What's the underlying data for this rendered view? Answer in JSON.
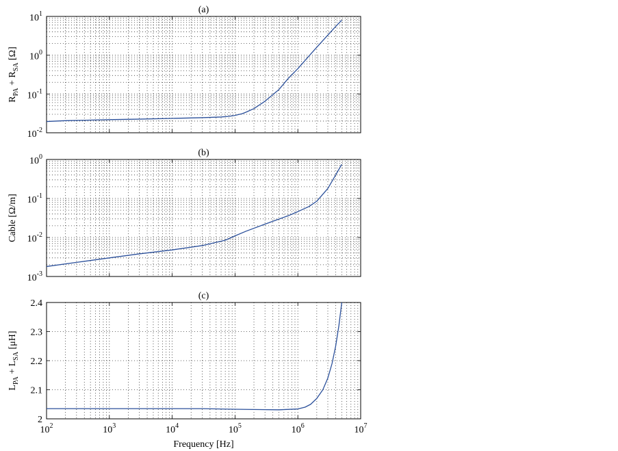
{
  "chart_data": [
    {
      "type": "line",
      "title": "(a)",
      "ylabel_parts": [
        {
          "t": "R",
          "sub": false
        },
        {
          "t": "PA",
          "sub": true
        },
        {
          "t": " + R",
          "sub": false
        },
        {
          "t": "SA",
          "sub": true
        },
        {
          "t": "   [Ω]",
          "sub": false
        }
      ],
      "xlabel": "",
      "xscale": "log",
      "yscale": "log",
      "xlim": [
        100,
        10000000
      ],
      "ylim": [
        0.01,
        10
      ],
      "grid": true,
      "y_ticks": [
        {
          "value": 0.01,
          "base": "10",
          "exp": "-2"
        },
        {
          "value": 0.1,
          "base": "10",
          "exp": "-1"
        },
        {
          "value": 1,
          "base": "10",
          "exp": "0"
        },
        {
          "value": 10,
          "base": "10",
          "exp": "1"
        }
      ],
      "series": [
        {
          "color": "#2a4f9a",
          "x": [
            100,
            200,
            500,
            1000,
            3000,
            10000,
            30000,
            60000,
            80000,
            100000,
            130000,
            150000,
            200000,
            300000,
            500000,
            700000,
            1000000,
            1500000,
            2000000,
            3000000,
            4000000,
            5000000
          ],
          "y": [
            0.0195,
            0.0205,
            0.0212,
            0.0218,
            0.0225,
            0.0235,
            0.0245,
            0.0255,
            0.0265,
            0.028,
            0.031,
            0.034,
            0.042,
            0.065,
            0.13,
            0.25,
            0.45,
            0.95,
            1.6,
            3.3,
            5.5,
            8.0
          ]
        }
      ]
    },
    {
      "type": "line",
      "title": "(b)",
      "ylabel_parts": [
        {
          "t": "Cable [Ω/m]",
          "sub": false
        }
      ],
      "xlabel": "",
      "xscale": "log",
      "yscale": "log",
      "xlim": [
        100,
        10000000
      ],
      "ylim": [
        0.001,
        1
      ],
      "grid": true,
      "y_ticks": [
        {
          "value": 0.001,
          "base": "10",
          "exp": "-3"
        },
        {
          "value": 0.01,
          "base": "10",
          "exp": "-2"
        },
        {
          "value": 0.1,
          "base": "10",
          "exp": "-1"
        },
        {
          "value": 1,
          "base": "10",
          "exp": "0"
        }
      ],
      "series": [
        {
          "color": "#2a4f9a",
          "x": [
            100,
            300,
            1000,
            3000,
            10000,
            30000,
            70000,
            100000,
            150000,
            300000,
            700000,
            1000000,
            1500000,
            2000000,
            3000000,
            4000000,
            5000000
          ],
          "y": [
            0.0018,
            0.0023,
            0.003,
            0.0038,
            0.0048,
            0.0062,
            0.0085,
            0.011,
            0.0145,
            0.022,
            0.036,
            0.046,
            0.062,
            0.085,
            0.18,
            0.4,
            0.75
          ]
        }
      ]
    },
    {
      "type": "line",
      "title": "(c)",
      "ylabel_parts": [
        {
          "t": "L",
          "sub": false
        },
        {
          "t": "PA",
          "sub": true
        },
        {
          "t": " + L",
          "sub": false
        },
        {
          "t": "SA",
          "sub": true
        },
        {
          "t": " [μH]",
          "sub": false
        }
      ],
      "xlabel": "Frequency [Hz]",
      "xscale": "log",
      "yscale": "linear",
      "xlim": [
        100,
        10000000
      ],
      "ylim": [
        2.0,
        2.4
      ],
      "grid": true,
      "y_ticks": [
        {
          "value": 2.0,
          "label": "2"
        },
        {
          "value": 2.1,
          "label": "2.1"
        },
        {
          "value": 2.2,
          "label": "2.2"
        },
        {
          "value": 2.3,
          "label": "2.3"
        },
        {
          "value": 2.4,
          "label": "2.4"
        }
      ],
      "series": [
        {
          "color": "#2a4f9a",
          "x": [
            100,
            1000,
            10000,
            30000,
            100000,
            200000,
            500000,
            1000000,
            1300000,
            1600000,
            2000000,
            2500000,
            3000000,
            3500000,
            4000000,
            4500000,
            5000000
          ],
          "y": [
            2.035,
            2.035,
            2.035,
            2.035,
            2.033,
            2.032,
            2.031,
            2.034,
            2.04,
            2.05,
            2.07,
            2.1,
            2.14,
            2.19,
            2.25,
            2.32,
            2.4
          ]
        }
      ]
    }
  ],
  "x_ticks": [
    {
      "value": 100,
      "base": "10",
      "exp": "2"
    },
    {
      "value": 1000,
      "base": "10",
      "exp": "3"
    },
    {
      "value": 10000,
      "base": "10",
      "exp": "4"
    },
    {
      "value": 100000,
      "base": "10",
      "exp": "5"
    },
    {
      "value": 1000000,
      "base": "10",
      "exp": "6"
    },
    {
      "value": 10000000,
      "base": "10",
      "exp": "7"
    }
  ]
}
